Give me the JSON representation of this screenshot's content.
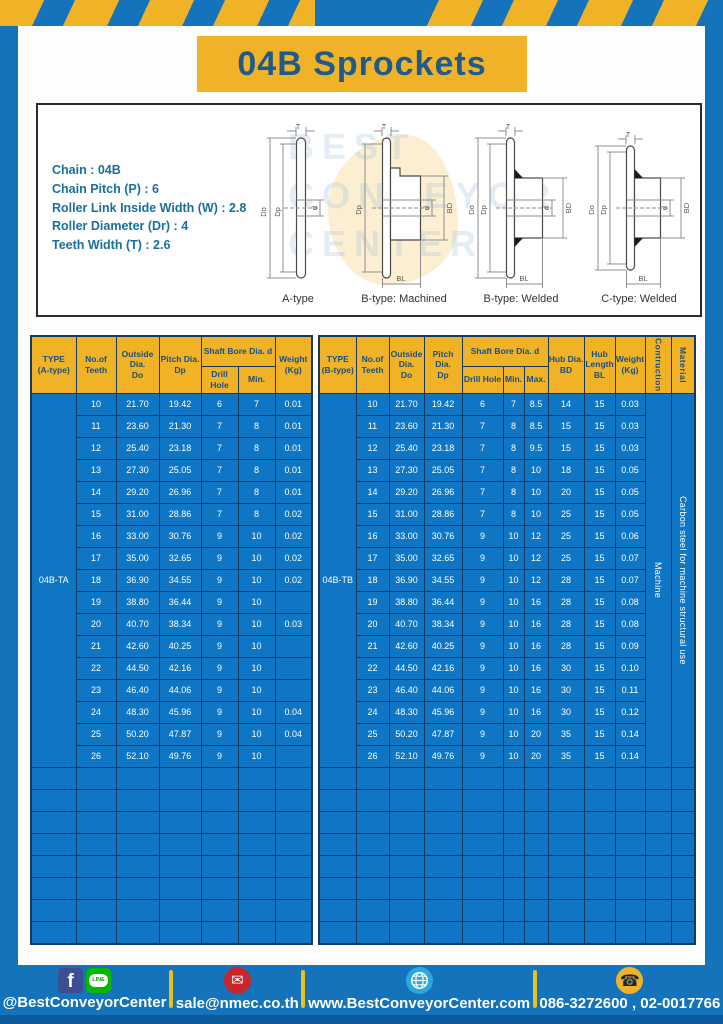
{
  "title": "04B Sprockets",
  "specs": [
    "Chain : 04B",
    "Chain Pitch (P) : 6",
    "Roller Link Inside Width (W) : 2.8",
    "Roller Diameter (Dr) : 4",
    "Teeth Width (T) : 2.6"
  ],
  "watermark": {
    "line1": "BEST",
    "line2": "CONVEYOR",
    "line3": "CENTER"
  },
  "dims": {
    "T": "T",
    "Do": "Do",
    "Dp": "Dp",
    "d": "d",
    "BD": "BD",
    "BL": "BL"
  },
  "figures": [
    "A-type",
    "B-type: Machined",
    "B-type: Welded",
    "C-type: Welded"
  ],
  "table_a": {
    "type_label": "04B-TA",
    "headers": {
      "type": "TYPE\n(A-type)",
      "teeth": "No.of\nTeeth",
      "outside": "Outside\nDia.\nDo",
      "pitch": "Pitch Dia.\nDp",
      "bore": "Shaft Bore Dia. d",
      "drill": "Drill Hole",
      "min": "Min.",
      "weight": "Weight\n(Kg)"
    },
    "rows": [
      [
        "10",
        "21.70",
        "19.42",
        "6",
        "7",
        "0.01"
      ],
      [
        "11",
        "23.60",
        "21.30",
        "7",
        "8",
        "0.01"
      ],
      [
        "12",
        "25.40",
        "23.18",
        "7",
        "8",
        "0.01"
      ],
      [
        "13",
        "27.30",
        "25.05",
        "7",
        "8",
        "0.01"
      ],
      [
        "14",
        "29.20",
        "26.96",
        "7",
        "8",
        "0.01"
      ],
      [
        "15",
        "31.00",
        "28.86",
        "7",
        "8",
        "0.02"
      ],
      [
        "16",
        "33.00",
        "30.76",
        "9",
        "10",
        "0.02"
      ],
      [
        "17",
        "35.00",
        "32.65",
        "9",
        "10",
        "0.02"
      ],
      [
        "18",
        "36.90",
        "34.55",
        "9",
        "10",
        "0.02"
      ],
      [
        "19",
        "38.80",
        "36.44",
        "9",
        "10",
        ""
      ],
      [
        "20",
        "40.70",
        "38.34",
        "9",
        "10",
        "0.03"
      ],
      [
        "21",
        "42.60",
        "40.25",
        "9",
        "10",
        ""
      ],
      [
        "22",
        "44.50",
        "42.16",
        "9",
        "10",
        ""
      ],
      [
        "23",
        "46.40",
        "44.06",
        "9",
        "10",
        ""
      ],
      [
        "24",
        "48.30",
        "45.96",
        "9",
        "10",
        "0.04"
      ],
      [
        "25",
        "50.20",
        "47.87",
        "9",
        "10",
        "0.04"
      ],
      [
        "26",
        "52.10",
        "49.76",
        "9",
        "10",
        ""
      ]
    ],
    "empty_rows": 8
  },
  "table_b": {
    "type_label": "04B-TB",
    "headers": {
      "type": "TYPE\n(B-type)",
      "teeth": "No.of\nTeeth",
      "outside": "Outside\nDia.\nDo",
      "pitch": "Pitch Dia.\nDp",
      "bore": "Shaft Bore Dia. d",
      "drill": "Drill Hole",
      "min": "Min.",
      "max": "Max.",
      "hub_dia": "Hub Dia.\nBD",
      "hub_len": "Hub\nLength\nBL",
      "weight": "Weight\n(Kg)",
      "construction": "Contruction",
      "material": "Material"
    },
    "rows": [
      [
        "10",
        "21.70",
        "19.42",
        "6",
        "7",
        "8.5",
        "14",
        "15",
        "0.03"
      ],
      [
        "11",
        "23.60",
        "21.30",
        "7",
        "8",
        "8.5",
        "15",
        "15",
        "0.03"
      ],
      [
        "12",
        "25.40",
        "23.18",
        "7",
        "8",
        "9.5",
        "15",
        "15",
        "0.03"
      ],
      [
        "13",
        "27.30",
        "25.05",
        "7",
        "8",
        "10",
        "18",
        "15",
        "0.05"
      ],
      [
        "14",
        "29.20",
        "26.96",
        "7",
        "8",
        "10",
        "20",
        "15",
        "0.05"
      ],
      [
        "15",
        "31.00",
        "28.86",
        "7",
        "8",
        "10",
        "25",
        "15",
        "0.05"
      ],
      [
        "16",
        "33.00",
        "30.76",
        "9",
        "10",
        "12",
        "25",
        "15",
        "0.06"
      ],
      [
        "17",
        "35.00",
        "32.65",
        "9",
        "10",
        "12",
        "25",
        "15",
        "0.07"
      ],
      [
        "18",
        "36.90",
        "34.55",
        "9",
        "10",
        "12",
        "28",
        "15",
        "0.07"
      ],
      [
        "19",
        "38.80",
        "36.44",
        "9",
        "10",
        "16",
        "28",
        "15",
        "0.08"
      ],
      [
        "20",
        "40.70",
        "38.34",
        "9",
        "10",
        "16",
        "28",
        "15",
        "0.08"
      ],
      [
        "21",
        "42.60",
        "40.25",
        "9",
        "10",
        "16",
        "28",
        "15",
        "0.09"
      ],
      [
        "22",
        "44.50",
        "42.16",
        "9",
        "10",
        "16",
        "30",
        "15",
        "0.10"
      ],
      [
        "23",
        "46.40",
        "44.06",
        "9",
        "10",
        "16",
        "30",
        "15",
        "0.11"
      ],
      [
        "24",
        "48.30",
        "45.96",
        "9",
        "10",
        "16",
        "30",
        "15",
        "0.12"
      ],
      [
        "25",
        "50.20",
        "47.87",
        "9",
        "10",
        "20",
        "35",
        "15",
        "0.14"
      ],
      [
        "26",
        "52.10",
        "49.76",
        "9",
        "10",
        "20",
        "35",
        "15",
        "0.14"
      ]
    ],
    "construction": "Machine",
    "material": "Carbon steel for machine structural use",
    "empty_rows": 8
  },
  "footer": {
    "social": "@BestConveyorCenter",
    "line_label": "LINE",
    "fb_label": "f",
    "email": "sale@nmec.co.th",
    "website": "www.BestConveyorCenter.com",
    "phone": "086-3272600 , 02-0017766",
    "mail_glyph": "✉",
    "phone_glyph": "☎"
  }
}
